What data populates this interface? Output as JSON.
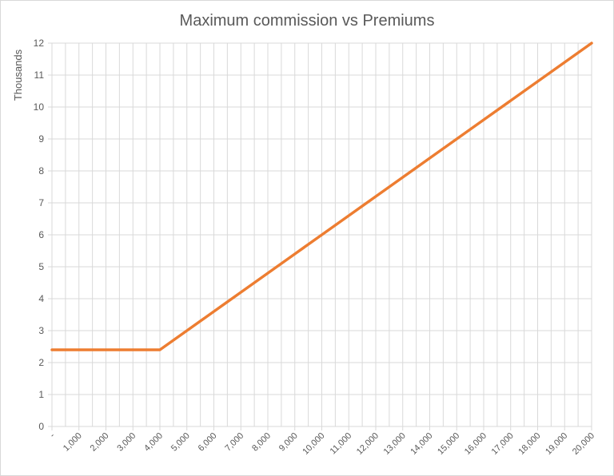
{
  "chart_data": {
    "type": "line",
    "title": "Maximum commission vs Premiums",
    "xlabel": "",
    "ylabel": "Thousands",
    "x": [
      0,
      1000,
      2000,
      3000,
      4000,
      5000,
      6000,
      7000,
      8000,
      9000,
      10000,
      11000,
      12000,
      13000,
      14000,
      15000,
      16000,
      17000,
      18000,
      19000,
      20000
    ],
    "x_tick_labels": [
      "-",
      "1,000",
      "2,000",
      "3,000",
      "4,000",
      "5,000",
      "6,000",
      "7,000",
      "8,000",
      "9,000",
      "10,000",
      "11,000",
      "12,000",
      "13,000",
      "14,000",
      "15,000",
      "16,000",
      "17,000",
      "18,000",
      "19,000",
      "20,000"
    ],
    "y_tick_labels": [
      "0",
      "1",
      "2",
      "3",
      "4",
      "5",
      "6",
      "7",
      "8",
      "9",
      "10",
      "11",
      "12"
    ],
    "series": [
      {
        "values": [
          2.4,
          2.4,
          2.4,
          2.4,
          2.4,
          3.0,
          3.6,
          4.2,
          4.8,
          5.4,
          6.0,
          6.6,
          7.2,
          7.8,
          8.4,
          9.0,
          9.6,
          10.2,
          10.8,
          11.4,
          12.0
        ]
      }
    ],
    "xlim": [
      0,
      20000
    ],
    "ylim": [
      0,
      12
    ],
    "grid": true,
    "legend": "none",
    "colors": {
      "line": "#ed7d31",
      "grid": "#d9d9d9",
      "text": "#595959"
    }
  }
}
